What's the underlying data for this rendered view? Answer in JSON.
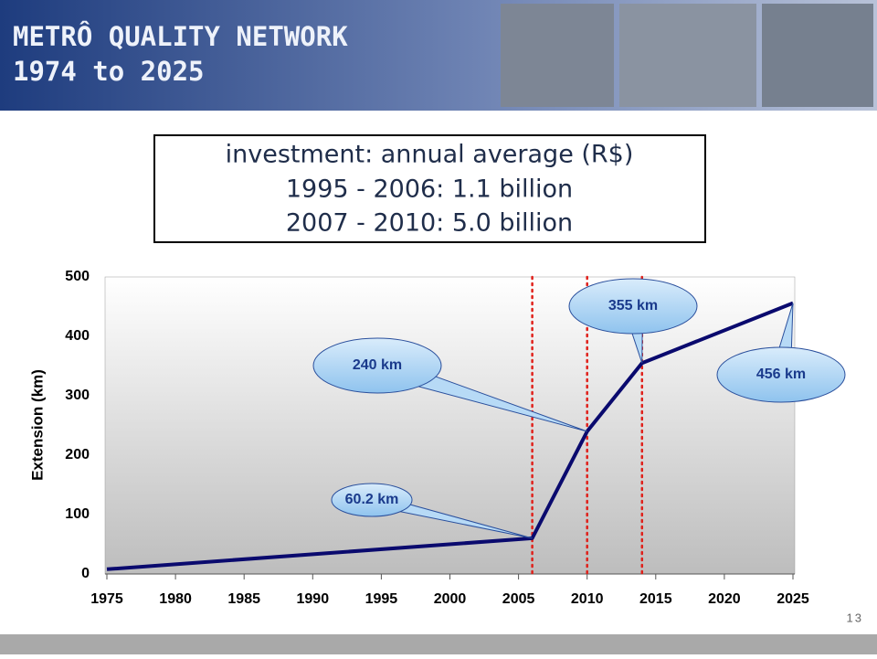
{
  "header": {
    "title": "METRÔ QUALITY NETWORK",
    "subtitle": "1974 to 2025"
  },
  "page_number": "13",
  "chart_data": {
    "type": "line",
    "annotations": [
      "investment: annual average (R$)",
      "1995 - 2006: 1.1 billion",
      "2007 - 2010: 5.0 billion"
    ],
    "y_label": "Extension (km)",
    "x": [
      1975,
      2006,
      2010,
      2014,
      2025
    ],
    "values": [
      8,
      60.2,
      240,
      355,
      456
    ],
    "value_labels": [
      null,
      "60.2 km",
      "240 km",
      "355 km",
      "456 km"
    ],
    "color": "#0a0a6e",
    "vlines": [
      2006,
      2010,
      2014
    ],
    "vline_color": "#e0201a",
    "xlim": [
      1975,
      2025
    ],
    "xticks": [
      1975,
      1980,
      1985,
      1990,
      1995,
      2000,
      2005,
      2010,
      2015,
      2020,
      2025
    ],
    "ylim": [
      0,
      500
    ],
    "yticks": [
      0,
      100,
      200,
      300,
      400,
      500
    ],
    "grid": false
  }
}
